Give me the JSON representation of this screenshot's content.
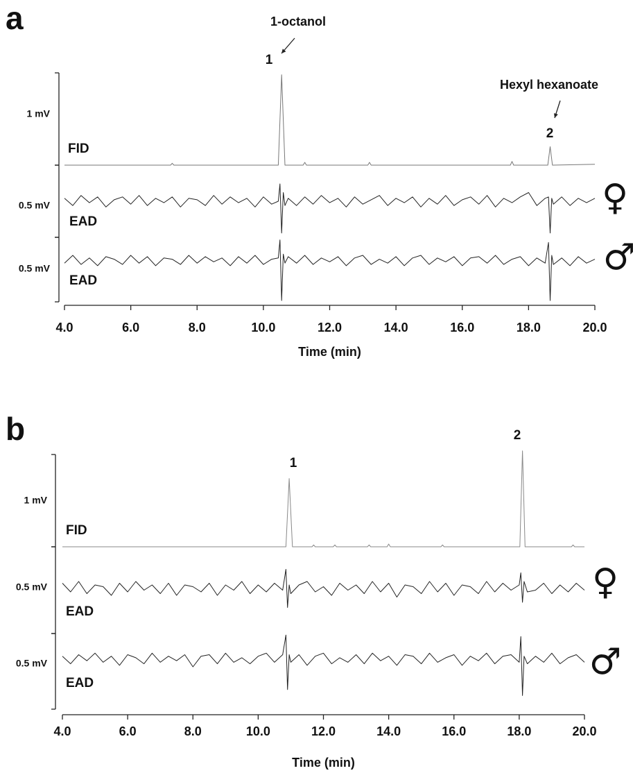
{
  "chart_data": [
    {
      "type": "line",
      "panel_label": "a",
      "xlabel": "Time (min)",
      "xlim": [
        4,
        20
      ],
      "xticks": [
        {
          "value": 4,
          "label": "4.0"
        },
        {
          "value": 6,
          "label": "6.0"
        },
        {
          "value": 8,
          "label": "8.0"
        },
        {
          "value": 10,
          "label": "10.0"
        },
        {
          "value": 12,
          "label": "12.0"
        },
        {
          "value": 14,
          "label": "14.0"
        },
        {
          "value": 16,
          "label": "16.0"
        },
        {
          "value": 18,
          "label": "18.0"
        },
        {
          "value": 20,
          "label": "20.0"
        }
      ],
      "peaks": [
        {
          "label": "1",
          "name": "1-octanol"
        },
        {
          "label": "2",
          "name": "Hexyl hexanoate"
        }
      ],
      "ead_x": [
        4,
        4.25,
        4.5,
        4.75,
        5,
        5.25,
        5.5,
        5.75,
        6,
        6.25,
        6.5,
        6.75,
        7,
        7.25,
        7.5,
        7.75,
        8,
        8.25,
        8.5,
        8.75,
        9,
        9.25,
        9.5,
        9.75,
        10,
        10.25,
        10.45,
        10.5,
        10.55,
        10.6,
        10.65,
        10.75,
        11,
        11.25,
        11.5,
        11.75,
        12,
        12.25,
        12.5,
        12.75,
        13,
        13.25,
        13.5,
        13.75,
        14,
        14.25,
        14.5,
        14.75,
        15,
        15.25,
        15.5,
        15.75,
        16,
        16.25,
        16.5,
        16.75,
        17,
        17.25,
        17.5,
        17.75,
        18,
        18.25,
        18.5,
        18.6,
        18.65,
        18.7,
        18.75,
        19,
        19.25,
        19.5,
        19.75,
        20
      ],
      "traces": [
        {
          "name": "FID",
          "scale_label": "1 mV",
          "color": "#777777",
          "ylim": [
            0,
            1
          ],
          "x": [
            4.0,
            7.2,
            7.25,
            7.3,
            10.45,
            10.55,
            10.65,
            11.2,
            11.25,
            11.3,
            13.15,
            13.2,
            13.25,
            17.45,
            17.5,
            17.55,
            18.58,
            18.65,
            18.72,
            20.0
          ],
          "values": [
            0,
            0,
            0.02,
            0,
            0,
            0.98,
            0,
            0,
            0.03,
            0,
            0,
            0.03,
            0,
            0,
            0.04,
            0,
            0,
            0.2,
            0,
            0.01
          ]
        },
        {
          "name": "EAD",
          "sex": "♀",
          "scale_label": "0.5 mV",
          "color": "#222222",
          "ylim": [
            -0.25,
            0.25
          ],
          "values": [
            0.02,
            -0.03,
            0.04,
            -0.01,
            0.03,
            -0.04,
            0.01,
            0.03,
            -0.02,
            0.04,
            -0.03,
            0.02,
            -0.01,
            0.03,
            -0.04,
            0.02,
            0.01,
            -0.03,
            0.04,
            -0.02,
            0.03,
            -0.01,
            0.02,
            -0.04,
            0.03,
            -0.02,
            0.0,
            0.12,
            -0.22,
            0.06,
            -0.03,
            0.02,
            -0.03,
            0.03,
            -0.02,
            0.04,
            -0.01,
            0.02,
            -0.04,
            0.03,
            -0.02,
            0.01,
            0.04,
            -0.03,
            0.02,
            -0.01,
            0.03,
            -0.04,
            0.02,
            -0.02,
            0.04,
            -0.03,
            0.01,
            0.03,
            -0.02,
            0.04,
            -0.04,
            0.02,
            -0.01,
            0.03,
            0.06,
            -0.03,
            0.02,
            0.03,
            -0.22,
            0.02,
            -0.02,
            0.03,
            -0.03,
            0.02,
            -0.01,
            0.02
          ]
        },
        {
          "name": "EAD",
          "sex": "♂",
          "scale_label": "0.5 mV",
          "color": "#222222",
          "ylim": [
            -0.32,
            0.18
          ],
          "values": [
            -0.02,
            0.04,
            -0.03,
            0.02,
            -0.04,
            0.03,
            0.01,
            -0.03,
            0.04,
            -0.02,
            0.03,
            -0.04,
            0.02,
            0.01,
            -0.03,
            0.04,
            -0.02,
            0.03,
            -0.01,
            0.02,
            -0.04,
            0.03,
            -0.02,
            0.04,
            -0.03,
            0.01,
            0.02,
            0.16,
            -0.31,
            0.05,
            -0.02,
            0.03,
            -0.02,
            0.04,
            -0.03,
            0.02,
            -0.01,
            0.03,
            -0.04,
            0.02,
            0.04,
            -0.03,
            0.01,
            -0.02,
            0.03,
            -0.04,
            0.02,
            0.04,
            -0.03,
            0.02,
            -0.01,
            0.03,
            -0.04,
            0.02,
            0.03,
            -0.02,
            0.04,
            -0.03,
            0.01,
            0.03,
            -0.04,
            0.02,
            -0.02,
            0.14,
            -0.31,
            0.04,
            -0.03,
            0.02,
            -0.04,
            0.03,
            -0.02,
            0.01
          ]
        }
      ]
    },
    {
      "type": "line",
      "panel_label": "b",
      "xlabel": "Time (min)",
      "xlim": [
        4,
        20
      ],
      "xticks": [
        {
          "value": 4,
          "label": "4.0"
        },
        {
          "value": 6,
          "label": "6.0"
        },
        {
          "value": 8,
          "label": "8.0"
        },
        {
          "value": 10,
          "label": "10.0"
        },
        {
          "value": 12,
          "label": "12.0"
        },
        {
          "value": 14,
          "label": "14.0"
        },
        {
          "value": 16,
          "label": "16.0"
        },
        {
          "value": 18,
          "label": "18.0"
        },
        {
          "value": 20,
          "label": "20.0"
        }
      ],
      "peaks": [
        {
          "label": "1"
        },
        {
          "label": "2"
        }
      ],
      "ead_x": [
        4,
        4.25,
        4.5,
        4.75,
        5,
        5.25,
        5.5,
        5.75,
        6,
        6.25,
        6.5,
        6.75,
        7,
        7.25,
        7.5,
        7.75,
        8,
        8.25,
        8.5,
        8.75,
        9,
        9.25,
        9.5,
        9.75,
        10,
        10.25,
        10.5,
        10.75,
        10.85,
        10.9,
        10.95,
        11,
        11.25,
        11.5,
        11.75,
        12,
        12.25,
        12.5,
        12.75,
        13,
        13.25,
        13.5,
        13.75,
        14,
        14.25,
        14.5,
        14.75,
        15,
        15.25,
        15.5,
        15.75,
        16,
        16.25,
        16.5,
        16.75,
        17,
        17.25,
        17.5,
        17.75,
        18,
        18.05,
        18.1,
        18.15,
        18.25,
        18.5,
        18.75,
        19,
        19.25,
        19.5,
        19.75,
        20
      ],
      "traces": [
        {
          "name": "FID",
          "scale_label": "1 mV",
          "color": "#888888",
          "ylim": [
            0,
            1
          ],
          "x": [
            4,
            10.85,
            10.95,
            11.05,
            11.65,
            11.7,
            11.75,
            12.3,
            12.35,
            12.4,
            13.35,
            13.4,
            13.45,
            13.95,
            14.0,
            14.05,
            15.6,
            15.65,
            15.7,
            18.02,
            18.1,
            18.18,
            19.6,
            19.65,
            19.7,
            20
          ],
          "values": [
            0,
            0,
            0.74,
            0,
            0,
            0.02,
            0,
            0,
            0.02,
            0,
            0,
            0.02,
            0,
            0,
            0.03,
            0,
            0,
            0.02,
            0,
            0,
            1.04,
            0,
            0,
            0.02,
            0,
            0
          ]
        },
        {
          "name": "EAD",
          "sex": "♀",
          "scale_label": "0.5 mV",
          "color": "#222222",
          "ylim": [
            -0.26,
            0.24
          ],
          "values": [
            0.03,
            -0.02,
            0.04,
            -0.03,
            0.02,
            0.01,
            -0.04,
            0.03,
            -0.02,
            0.04,
            -0.01,
            0.02,
            -0.03,
            0.03,
            -0.04,
            0.02,
            0.01,
            -0.02,
            0.03,
            -0.04,
            0.02,
            -0.01,
            0.04,
            -0.03,
            0.02,
            -0.02,
            0.03,
            -0.01,
            0.11,
            -0.11,
            0.02,
            -0.03,
            0.02,
            0.04,
            -0.02,
            0.01,
            -0.04,
            0.03,
            -0.01,
            0.02,
            -0.03,
            0.04,
            -0.02,
            0.03,
            -0.05,
            0.02,
            0.01,
            -0.03,
            0.04,
            -0.02,
            0.03,
            -0.04,
            0.02,
            0.01,
            -0.03,
            0.04,
            -0.02,
            0.03,
            -0.01,
            0.02,
            0.09,
            -0.08,
            0.04,
            -0.02,
            -0.01,
            0.03,
            -0.03,
            0.02,
            -0.02,
            0.03,
            -0.01
          ]
        },
        {
          "name": "EAD",
          "sex": "♂",
          "scale_label": "0.5 mV",
          "color": "#222222",
          "ylim": [
            -0.33,
            0.17
          ],
          "values": [
            0.02,
            -0.03,
            0.03,
            -0.01,
            0.04,
            -0.02,
            0.02,
            -0.04,
            0.03,
            0.01,
            -0.03,
            0.04,
            -0.02,
            0.02,
            -0.01,
            0.03,
            -0.05,
            0.02,
            0.03,
            -0.03,
            0.04,
            -0.02,
            0.01,
            -0.03,
            0.02,
            0.04,
            -0.02,
            0.03,
            0.16,
            -0.2,
            0.03,
            -0.02,
            0.03,
            -0.04,
            0.02,
            0.04,
            -0.03,
            0.01,
            -0.02,
            0.03,
            -0.03,
            0.04,
            -0.01,
            0.02,
            -0.04,
            0.03,
            0.02,
            -0.03,
            0.04,
            -0.02,
            0.01,
            0.03,
            -0.04,
            0.02,
            -0.01,
            0.04,
            -0.03,
            0.02,
            0.03,
            -0.02,
            0.15,
            -0.24,
            0.02,
            -0.03,
            0.02,
            -0.02,
            0.04,
            -0.03,
            0.01,
            0.03,
            -0.02
          ]
        }
      ]
    }
  ]
}
